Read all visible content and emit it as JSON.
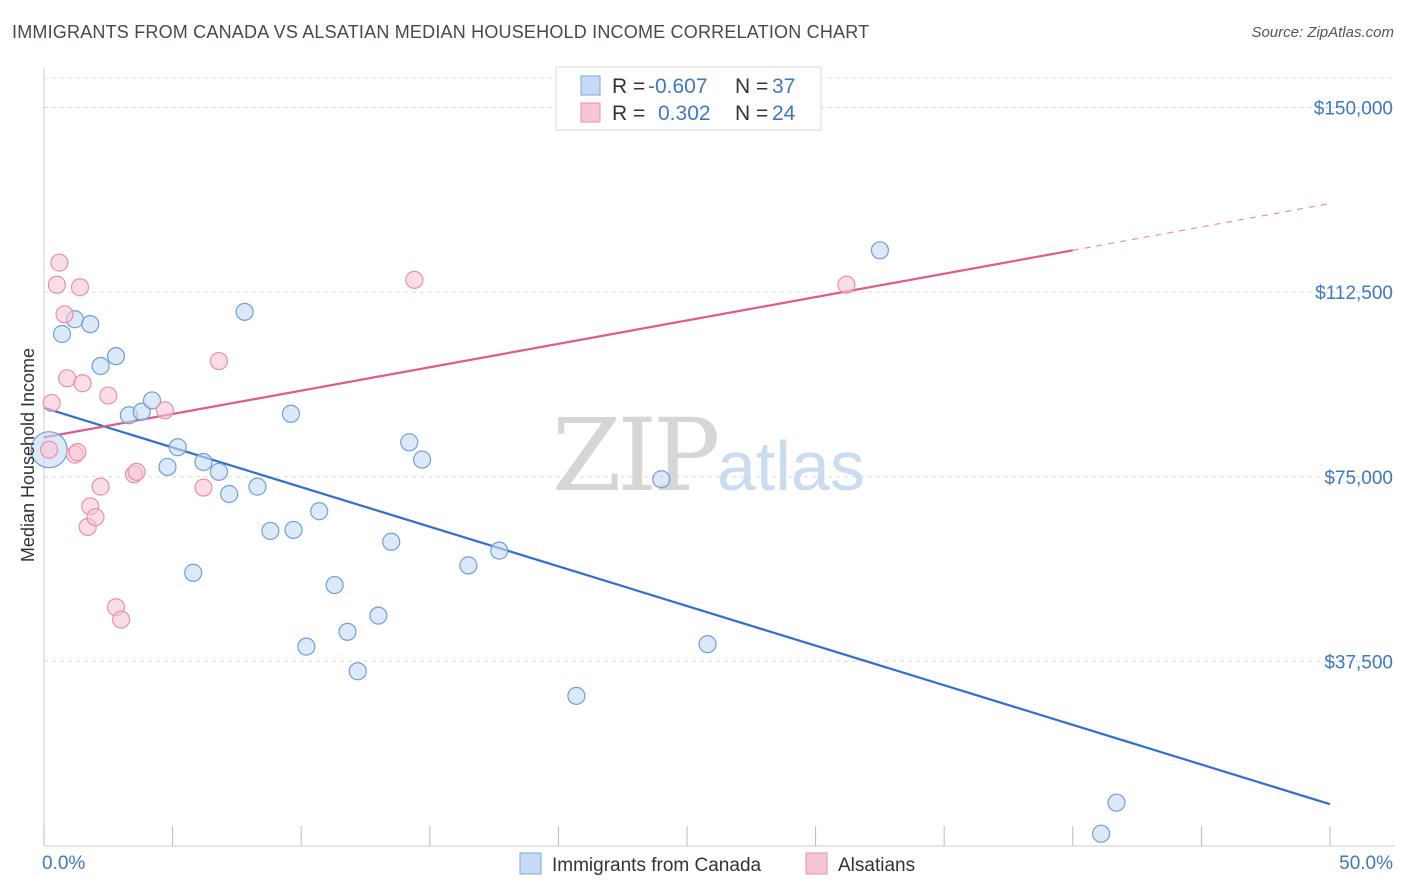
{
  "title": "IMMIGRANTS FROM CANADA VS ALSATIAN MEDIAN HOUSEHOLD INCOME CORRELATION CHART",
  "source": "Source: ZipAtlas.com",
  "watermark": {
    "zip": "ZIP",
    "atlas": "atlas"
  },
  "colors": {
    "blue": "#3d78c6",
    "blue_line": "#2f6fd1",
    "blue_fill": "#c5dbf5",
    "pink": "#e05a8a",
    "pink_fill": "#f7c6d5",
    "grid": "#dddddd"
  },
  "legend_box": {
    "rows": [
      {
        "r_label": "R =",
        "r_value": "-0.607",
        "n_label": "N =",
        "n_value": "37"
      },
      {
        "r_label": "R =",
        "r_value": "0.302",
        "n_label": "N =",
        "n_value": "24"
      }
    ]
  },
  "bottom_legend": [
    "Immigrants from Canada",
    "Alsatians"
  ],
  "chart_data": {
    "type": "scatter",
    "title": "IMMIGRANTS FROM CANADA VS ALSATIAN MEDIAN HOUSEHOLD INCOME CORRELATION CHART",
    "xlabel": "",
    "ylabel": "Median Household Income",
    "xlim": [
      0,
      50
    ],
    "ylim": [
      0,
      156000
    ],
    "y_ticks": [
      37500,
      75000,
      112500,
      150000
    ],
    "y_tick_labels": [
      "$37,500",
      "$75,000",
      "$112,500",
      "$150,000"
    ],
    "x_tick_labels": [
      "0.0%",
      "50.0%"
    ],
    "grid": true,
    "series": [
      {
        "name": "Immigrants from Canada",
        "color": "#3d78c6",
        "points": [
          [
            0.2,
            80500
          ],
          [
            0.7,
            104000
          ],
          [
            1.2,
            107000
          ],
          [
            1.8,
            106000
          ],
          [
            2.2,
            97500
          ],
          [
            2.8,
            99500
          ],
          [
            3.3,
            87500
          ],
          [
            3.8,
            88200
          ],
          [
            4.2,
            90500
          ],
          [
            4.8,
            77000
          ],
          [
            5.2,
            81000
          ],
          [
            5.8,
            55500
          ],
          [
            6.2,
            78000
          ],
          [
            6.8,
            76000
          ],
          [
            7.2,
            71500
          ],
          [
            7.8,
            108500
          ],
          [
            8.3,
            73000
          ],
          [
            8.8,
            64000
          ],
          [
            9.6,
            87800
          ],
          [
            9.7,
            64200
          ],
          [
            10.2,
            40500
          ],
          [
            10.7,
            68000
          ],
          [
            11.3,
            53000
          ],
          [
            11.8,
            43500
          ],
          [
            12.2,
            35500
          ],
          [
            13.0,
            46800
          ],
          [
            13.5,
            61800
          ],
          [
            14.2,
            82000
          ],
          [
            14.7,
            78500
          ],
          [
            16.5,
            57000
          ],
          [
            17.7,
            60000
          ],
          [
            20.7,
            30500
          ],
          [
            24.0,
            74500
          ],
          [
            25.8,
            41000
          ],
          [
            32.5,
            121000
          ],
          [
            41.1,
            2500
          ],
          [
            41.7,
            8800
          ]
        ],
        "trend": {
          "x": [
            0,
            50
          ],
          "y": [
            89000,
            8500
          ]
        }
      },
      {
        "name": "Alsatians",
        "color": "#e05a8a",
        "points": [
          [
            0.2,
            80500
          ],
          [
            0.3,
            90000
          ],
          [
            0.5,
            114000
          ],
          [
            0.6,
            118500
          ],
          [
            0.8,
            108000
          ],
          [
            0.9,
            95000
          ],
          [
            1.2,
            79500
          ],
          [
            1.3,
            80000
          ],
          [
            1.4,
            113500
          ],
          [
            1.5,
            94000
          ],
          [
            1.7,
            64800
          ],
          [
            1.8,
            69000
          ],
          [
            2.0,
            66800
          ],
          [
            2.2,
            73000
          ],
          [
            2.5,
            91500
          ],
          [
            2.8,
            48500
          ],
          [
            3.0,
            46000
          ],
          [
            3.5,
            75500
          ],
          [
            3.6,
            76000
          ],
          [
            4.7,
            88500
          ],
          [
            6.2,
            72800
          ],
          [
            6.8,
            98500
          ],
          [
            14.4,
            115000
          ],
          [
            31.2,
            114000
          ]
        ],
        "trend": {
          "x": [
            0,
            40
          ],
          "y": [
            83000,
            121000
          ],
          "dashed_to": {
            "x": 50,
            "y": 130500
          }
        }
      }
    ]
  }
}
